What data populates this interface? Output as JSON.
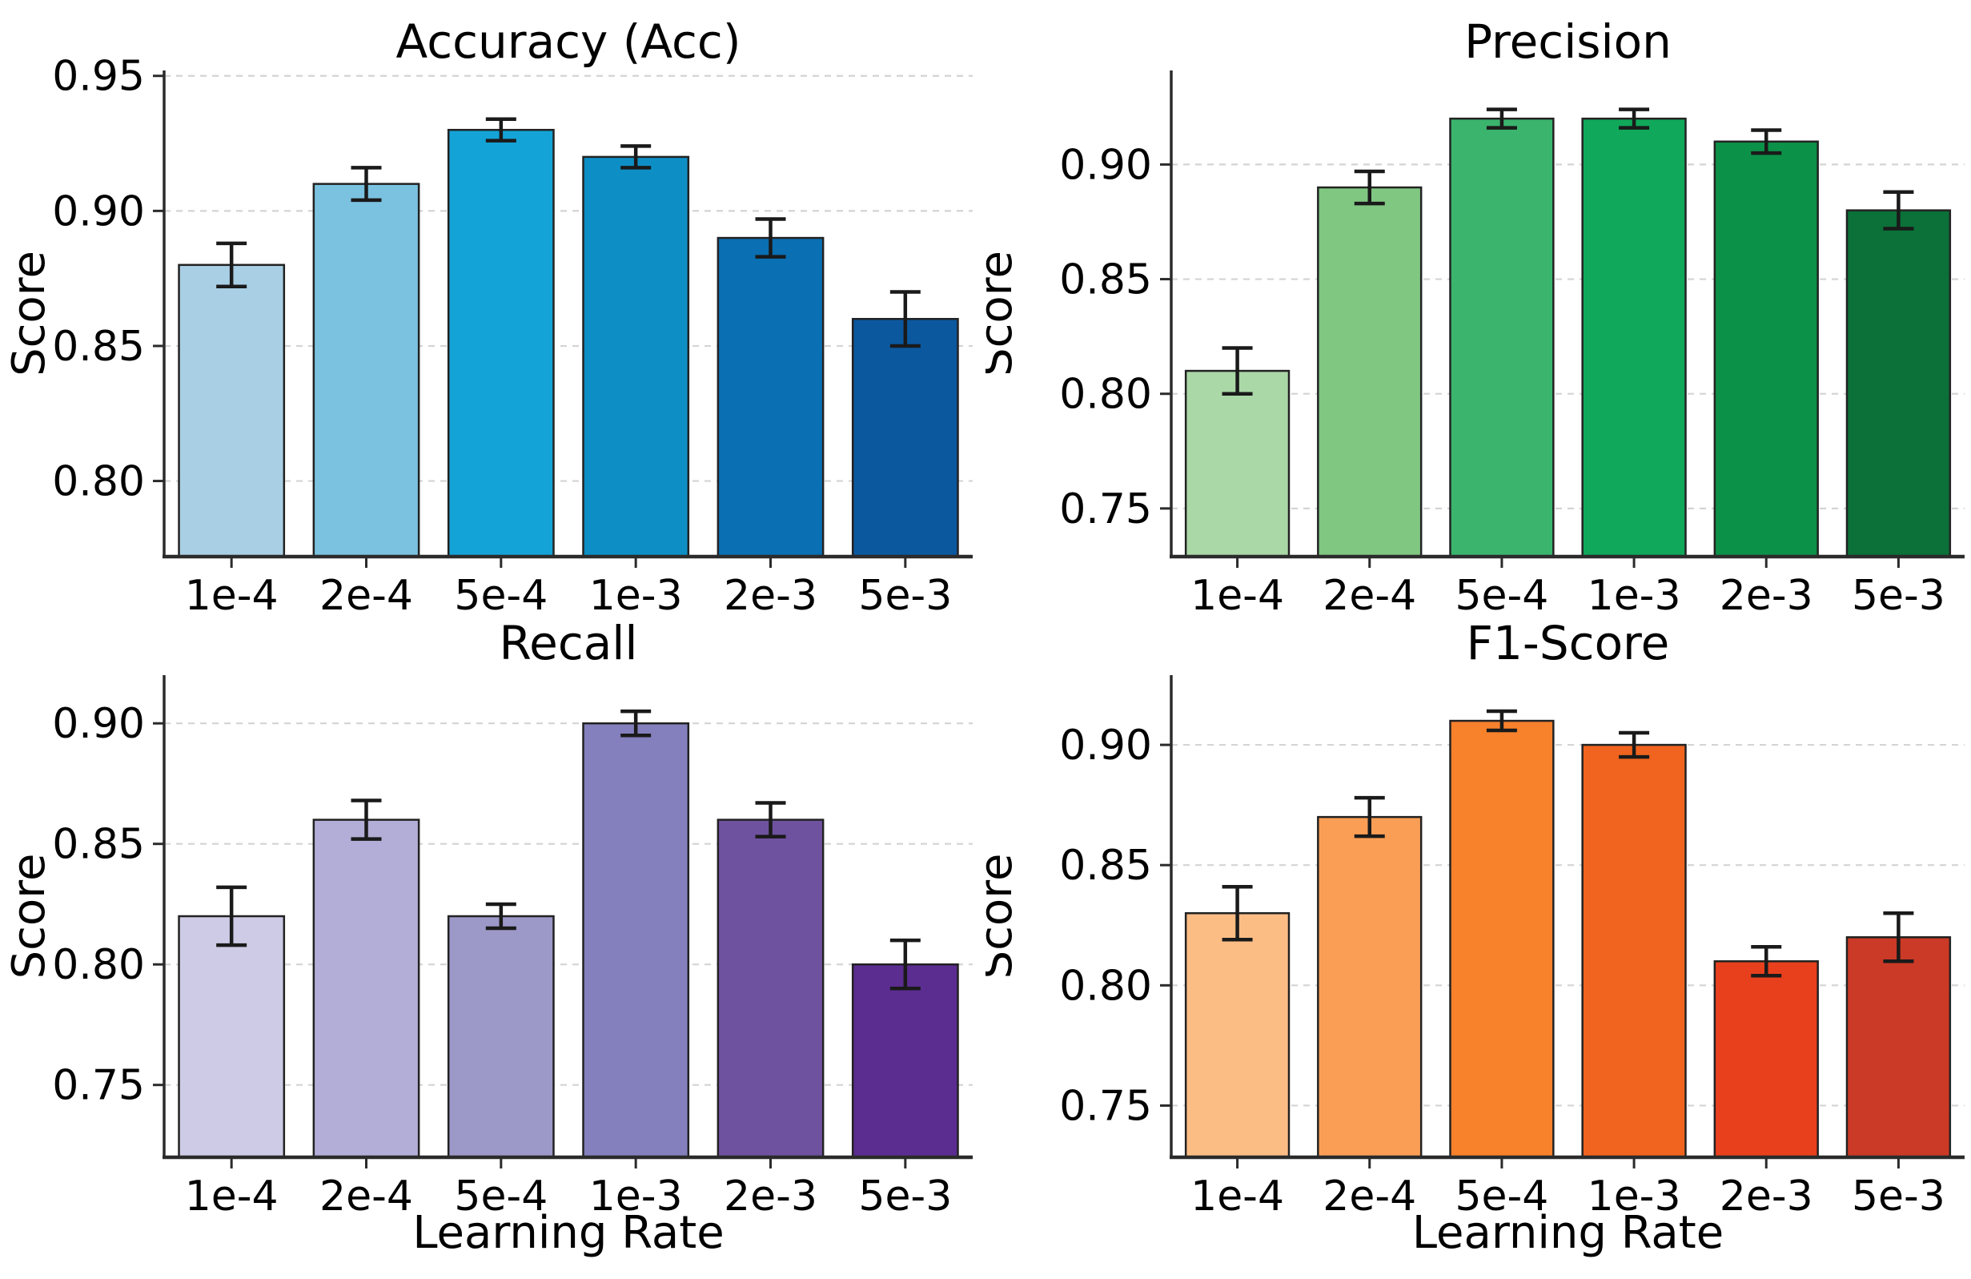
{
  "figure": {
    "shared_xlabel": "Learning Rate",
    "shared_ylabel": "Score",
    "categories": [
      "1e-4",
      "2e-4",
      "5e-4",
      "1e-3",
      "2e-3",
      "5e-3"
    ],
    "grid_layout": "2x2",
    "background": "#ffffff",
    "grid_color": "#d4d4d4",
    "spine_color": "#2b2b2b",
    "errorbar_color": "#1a1a1a",
    "bar_edge_color": "#222222"
  },
  "chart_data": [
    {
      "type": "bar",
      "title": "Accuracy (Acc)",
      "xlabel": "",
      "ylabel": "Score",
      "categories": [
        "1e-4",
        "2e-4",
        "5e-4",
        "1e-3",
        "2e-3",
        "5e-3"
      ],
      "values": [
        0.88,
        0.91,
        0.93,
        0.92,
        0.89,
        0.86
      ],
      "errors": [
        0.008,
        0.006,
        0.004,
        0.004,
        0.007,
        0.01
      ],
      "colors": [
        "#a9cfe5",
        "#7bc2e0",
        "#14a3d7",
        "#0d8fc5",
        "#0a6fb3",
        "#0b589f"
      ],
      "ylim": [
        0.772,
        0.952
      ],
      "yticks": [
        0.8,
        0.85,
        0.9,
        0.95
      ],
      "grid": "dashed-horizontal",
      "legend": "none"
    },
    {
      "type": "bar",
      "title": "Precision",
      "xlabel": "",
      "ylabel": "Score",
      "categories": [
        "1e-4",
        "2e-4",
        "5e-4",
        "1e-3",
        "2e-3",
        "5e-3"
      ],
      "values": [
        0.81,
        0.89,
        0.92,
        0.92,
        0.91,
        0.88
      ],
      "errors": [
        0.01,
        0.007,
        0.004,
        0.004,
        0.005,
        0.008
      ],
      "colors": [
        "#aad8a7",
        "#80c782",
        "#3bb46e",
        "#10a85a",
        "#0c9148",
        "#0b7138"
      ],
      "ylim": [
        0.729,
        0.941
      ],
      "yticks": [
        0.75,
        0.8,
        0.85,
        0.9
      ],
      "grid": "dashed-horizontal",
      "legend": "none"
    },
    {
      "type": "bar",
      "title": "Recall",
      "xlabel": "Learning Rate",
      "ylabel": "Score",
      "categories": [
        "1e-4",
        "2e-4",
        "5e-4",
        "1e-3",
        "2e-3",
        "5e-3"
      ],
      "values": [
        0.82,
        0.86,
        0.82,
        0.9,
        0.86,
        0.8
      ],
      "errors": [
        0.012,
        0.008,
        0.005,
        0.005,
        0.007,
        0.01
      ],
      "colors": [
        "#cecbe7",
        "#b2aed7",
        "#9c98c8",
        "#8480bd",
        "#6f529f",
        "#5b2d90"
      ],
      "ylim": [
        0.72,
        0.92
      ],
      "yticks": [
        0.75,
        0.8,
        0.85,
        0.9
      ],
      "grid": "dashed-horizontal",
      "legend": "none"
    },
    {
      "type": "bar",
      "title": "F1-Score",
      "xlabel": "Learning Rate",
      "ylabel": "Score",
      "categories": [
        "1e-4",
        "2e-4",
        "5e-4",
        "1e-3",
        "2e-3",
        "5e-3"
      ],
      "values": [
        0.83,
        0.87,
        0.91,
        0.9,
        0.81,
        0.82
      ],
      "errors": [
        0.011,
        0.008,
        0.004,
        0.005,
        0.006,
        0.01
      ],
      "colors": [
        "#fcbd85",
        "#fb9e55",
        "#f8812c",
        "#f0641f",
        "#e8401d",
        "#cb3a26"
      ],
      "ylim": [
        0.7285,
        0.929
      ],
      "yticks": [
        0.75,
        0.8,
        0.85,
        0.9
      ],
      "grid": "dashed-horizontal",
      "legend": "none"
    }
  ]
}
